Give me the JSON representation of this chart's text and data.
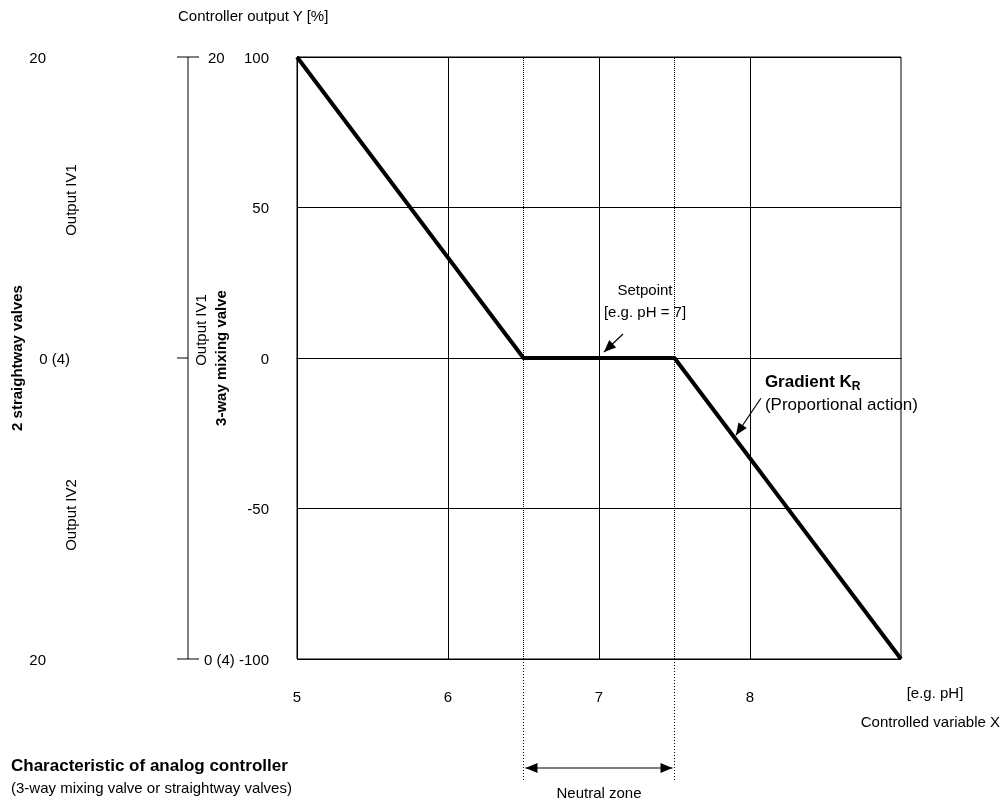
{
  "chart_data": {
    "type": "line",
    "title": "Characteristic of analog controller",
    "subtitle": "(3-way mixing valve or straightway valves)",
    "xlabel": "Controlled variable X",
    "ylabel": "Controller output Y [%]",
    "x": [
      5,
      6.5,
      7.5,
      9
    ],
    "series": [
      {
        "color": "#000000",
        "values": [
          100,
          0,
          0,
          -100
        ]
      }
    ],
    "xlim": [
      5,
      9
    ],
    "xticks": [
      5,
      6,
      7,
      8
    ],
    "ylim": [
      -100,
      100
    ],
    "yticks": [
      -100,
      -50,
      0,
      50,
      100
    ],
    "ref_lines": [
      {
        "axis": "x",
        "value": 6.5,
        "color": "#000000",
        "line_style": "dotted"
      },
      {
        "axis": "x",
        "value": 7.5,
        "color": "#000000",
        "line_style": "dotted"
      }
    ],
    "annotations": [
      "[e.g. pH]",
      {
        "text": "Setpoint\n[e.g. pH = 7]",
        "x": 7,
        "y": 0
      },
      {
        "text": "Gradient K$_{R}$",
        "x": 7.9,
        "y": -26
      },
      "(Proportional action)",
      "Neutral zone",
      "Output IV1",
      "Output IV2",
      "Output IV1",
      "2 straightway valves",
      "3-way mixing valve",
      "20",
      "0 (4)",
      "20",
      "20",
      "0 (4)"
    ],
    "grid": true,
    "marker": "none"
  }
}
